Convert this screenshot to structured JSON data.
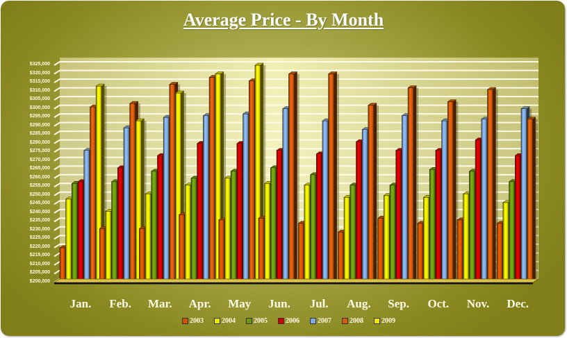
{
  "chart_data": {
    "type": "bar",
    "subtype": "3d-clustered-cylinder",
    "title": "Average Price - By Month",
    "xlabel": "",
    "ylabel": "",
    "ylim": [
      200000,
      325000
    ],
    "ytick_step": 5000,
    "yticks": [
      "$200,000",
      "$205,000",
      "$210,000",
      "$215,000",
      "$220,000",
      "$225,000",
      "$230,000",
      "$235,000",
      "$240,000",
      "$245,000",
      "$250,000",
      "$255,000",
      "$260,000",
      "$265,000",
      "$270,000",
      "$275,000",
      "$280,000",
      "$285,000",
      "$290,000",
      "$295,000",
      "$300,000",
      "$305,000",
      "$310,000",
      "$315,000",
      "$320,000",
      "$325,000"
    ],
    "grid": true,
    "legend_position": "bottom",
    "categories": [
      "Jan.",
      "Feb.",
      "Mar.",
      "Apr.",
      "May",
      "Jun.",
      "Jul.",
      "Aug.",
      "Sep.",
      "Oct.",
      "Nov.",
      "Dec."
    ],
    "series": [
      {
        "name": "2003",
        "color": "#d35400",
        "values": [
          220000,
          231000,
          231000,
          239000,
          236000,
          237000,
          234000,
          229000,
          237000,
          234000,
          236000,
          234000
        ]
      },
      {
        "name": "2004",
        "color": "#e6e600",
        "values": [
          248000,
          241000,
          251000,
          256000,
          260000,
          257000,
          256000,
          249000,
          250000,
          249000,
          251000,
          246000
        ]
      },
      {
        "name": "2005",
        "color": "#6b9a10",
        "values": [
          257000,
          258000,
          264000,
          260000,
          264000,
          266000,
          262000,
          256000,
          256000,
          265000,
          264000,
          258000
        ]
      },
      {
        "name": "2006",
        "color": "#d00000",
        "values": [
          258000,
          266000,
          273000,
          280000,
          280000,
          276000,
          274000,
          281000,
          276000,
          276000,
          282000,
          273000
        ]
      },
      {
        "name": "2007",
        "color": "#7fa8e0",
        "values": [
          276000,
          289000,
          295000,
          296000,
          297000,
          300000,
          293000,
          288000,
          296000,
          293000,
          294000,
          300000
        ]
      },
      {
        "name": "2008",
        "color": "#d65a0c",
        "values": [
          301000,
          303000,
          314000,
          318000,
          316000,
          320000,
          320000,
          302000,
          312000,
          304000,
          311000,
          294000
        ]
      },
      {
        "name": "2009",
        "color": "#f2e600",
        "values": [
          313000,
          293000,
          309000,
          320000,
          325000,
          null,
          null,
          null,
          null,
          null,
          null,
          null
        ]
      }
    ]
  }
}
